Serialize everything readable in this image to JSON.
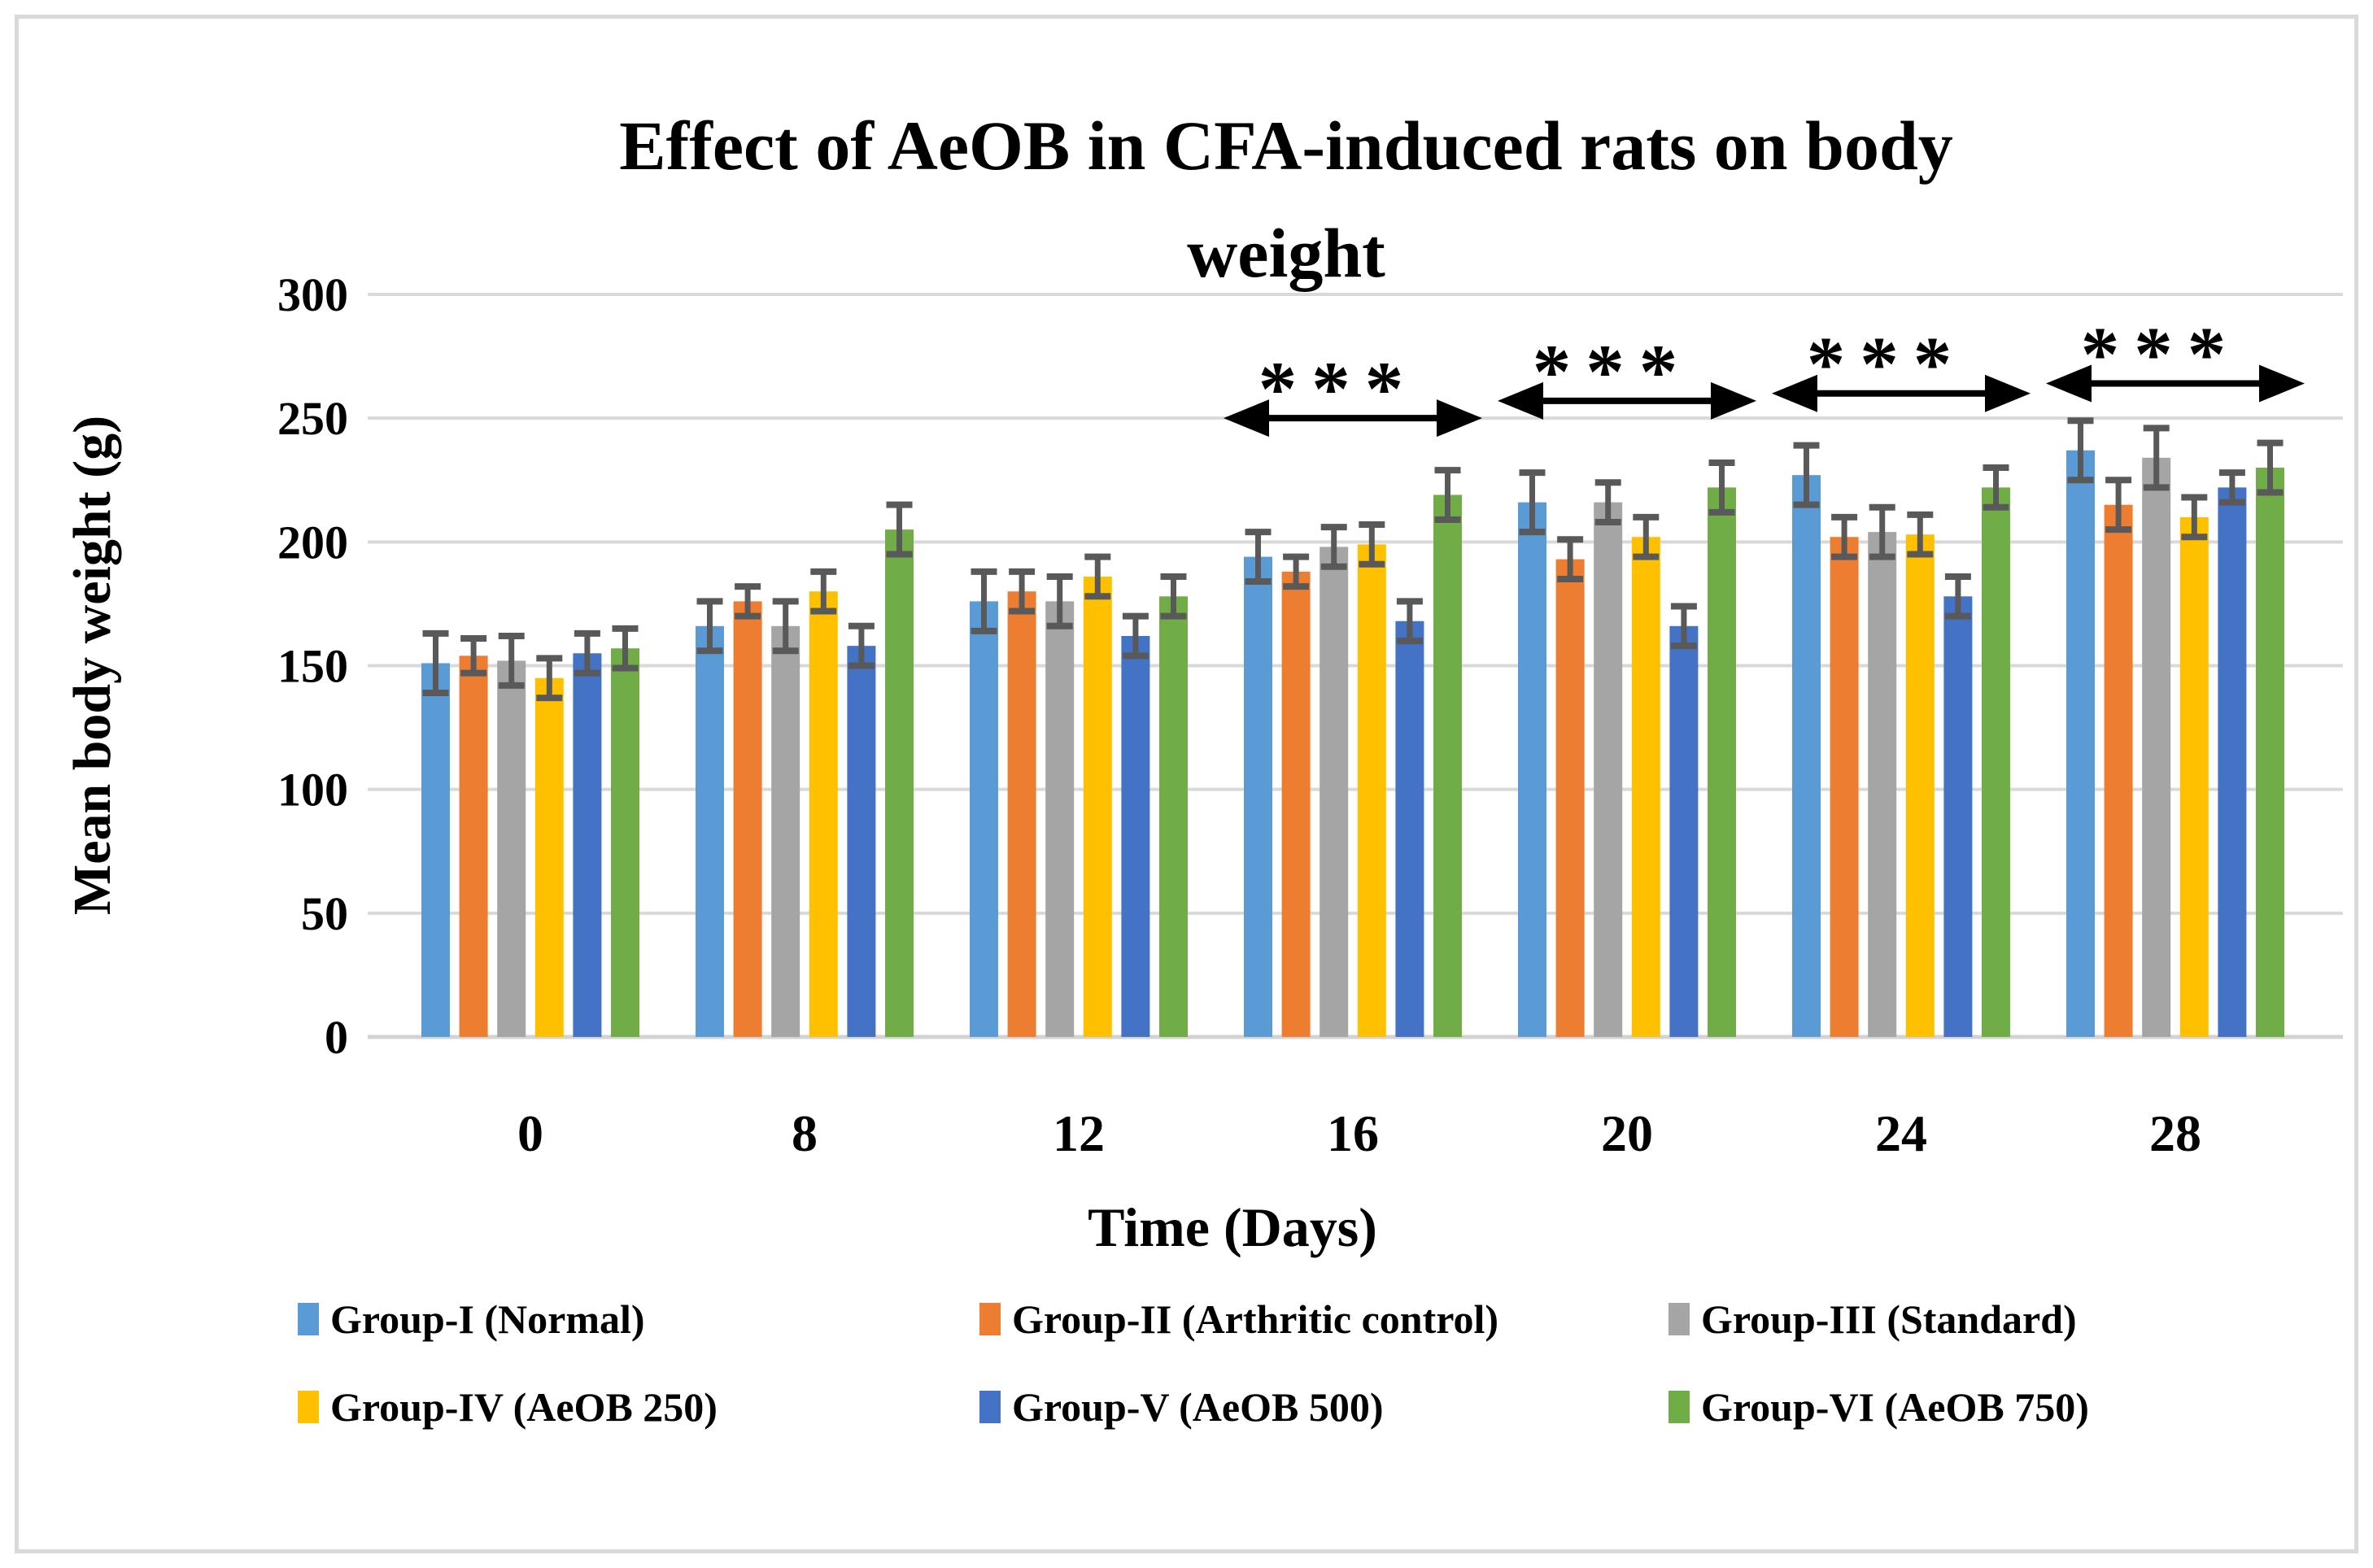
{
  "chart_data": {
    "type": "bar",
    "title": "Effect of AeOB in CFA-induced rats on body weight",
    "xlabel": "Time (Days)",
    "ylabel": "Mean body weight (g)",
    "ylim": [
      0,
      300
    ],
    "ytick_step": 50,
    "yticks": [
      0,
      50,
      100,
      150,
      200,
      250,
      300
    ],
    "categories": [
      "0",
      "8",
      "12",
      "16",
      "20",
      "24",
      "28"
    ],
    "grid": true,
    "legend_position": "bottom",
    "series": [
      {
        "name": "Group-I (Normal)",
        "color": "#5B9BD5",
        "values": [
          151,
          166,
          176,
          194,
          216,
          227,
          237
        ],
        "errors": [
          12,
          10,
          12,
          10,
          12,
          12,
          12
        ]
      },
      {
        "name": "Group-II (Arthritic control)",
        "color": "#ED7D31",
        "values": [
          154,
          176,
          180,
          188,
          193,
          202,
          215
        ],
        "errors": [
          7,
          6,
          8,
          6,
          8,
          8,
          10
        ]
      },
      {
        "name": "Group-III (Standard)",
        "color": "#A5A5A5",
        "values": [
          152,
          166,
          176,
          198,
          216,
          204,
          234
        ],
        "errors": [
          10,
          10,
          10,
          8,
          8,
          10,
          12
        ]
      },
      {
        "name": "Group-IV (AeOB 250)",
        "color": "#FFC000",
        "values": [
          145,
          180,
          186,
          199,
          202,
          203,
          210
        ],
        "errors": [
          8,
          8,
          8,
          8,
          8,
          8,
          8
        ]
      },
      {
        "name": "Group-V (AeOB 500)",
        "color": "#4472C4",
        "values": [
          155,
          158,
          162,
          168,
          166,
          178,
          222
        ],
        "errors": [
          8,
          8,
          8,
          8,
          8,
          8,
          6
        ]
      },
      {
        "name": "Group-VI (AeOB 750)",
        "color": "#70AD47",
        "values": [
          157,
          205,
          178,
          219,
          222,
          222,
          230
        ],
        "errors": [
          8,
          10,
          8,
          10,
          10,
          8,
          10
        ]
      }
    ],
    "annotations": [
      {
        "symbol": "***",
        "style": "double-arrow",
        "category": "16",
        "y": 250
      },
      {
        "symbol": "***",
        "style": "double-arrow",
        "category": "20",
        "y": 257
      },
      {
        "symbol": "***",
        "style": "double-arrow",
        "category": "24",
        "y": 260
      },
      {
        "symbol": "***",
        "style": "double-arrow",
        "category": "28",
        "y": 264
      }
    ]
  },
  "colors": {
    "grid": "#D9D9D9",
    "zero_line": "#D3D3D3",
    "error_bar": "#595959",
    "annotation": "#000000",
    "text": "#000000",
    "frame_border": "#D9D9D9",
    "background": "#FFFFFF"
  }
}
